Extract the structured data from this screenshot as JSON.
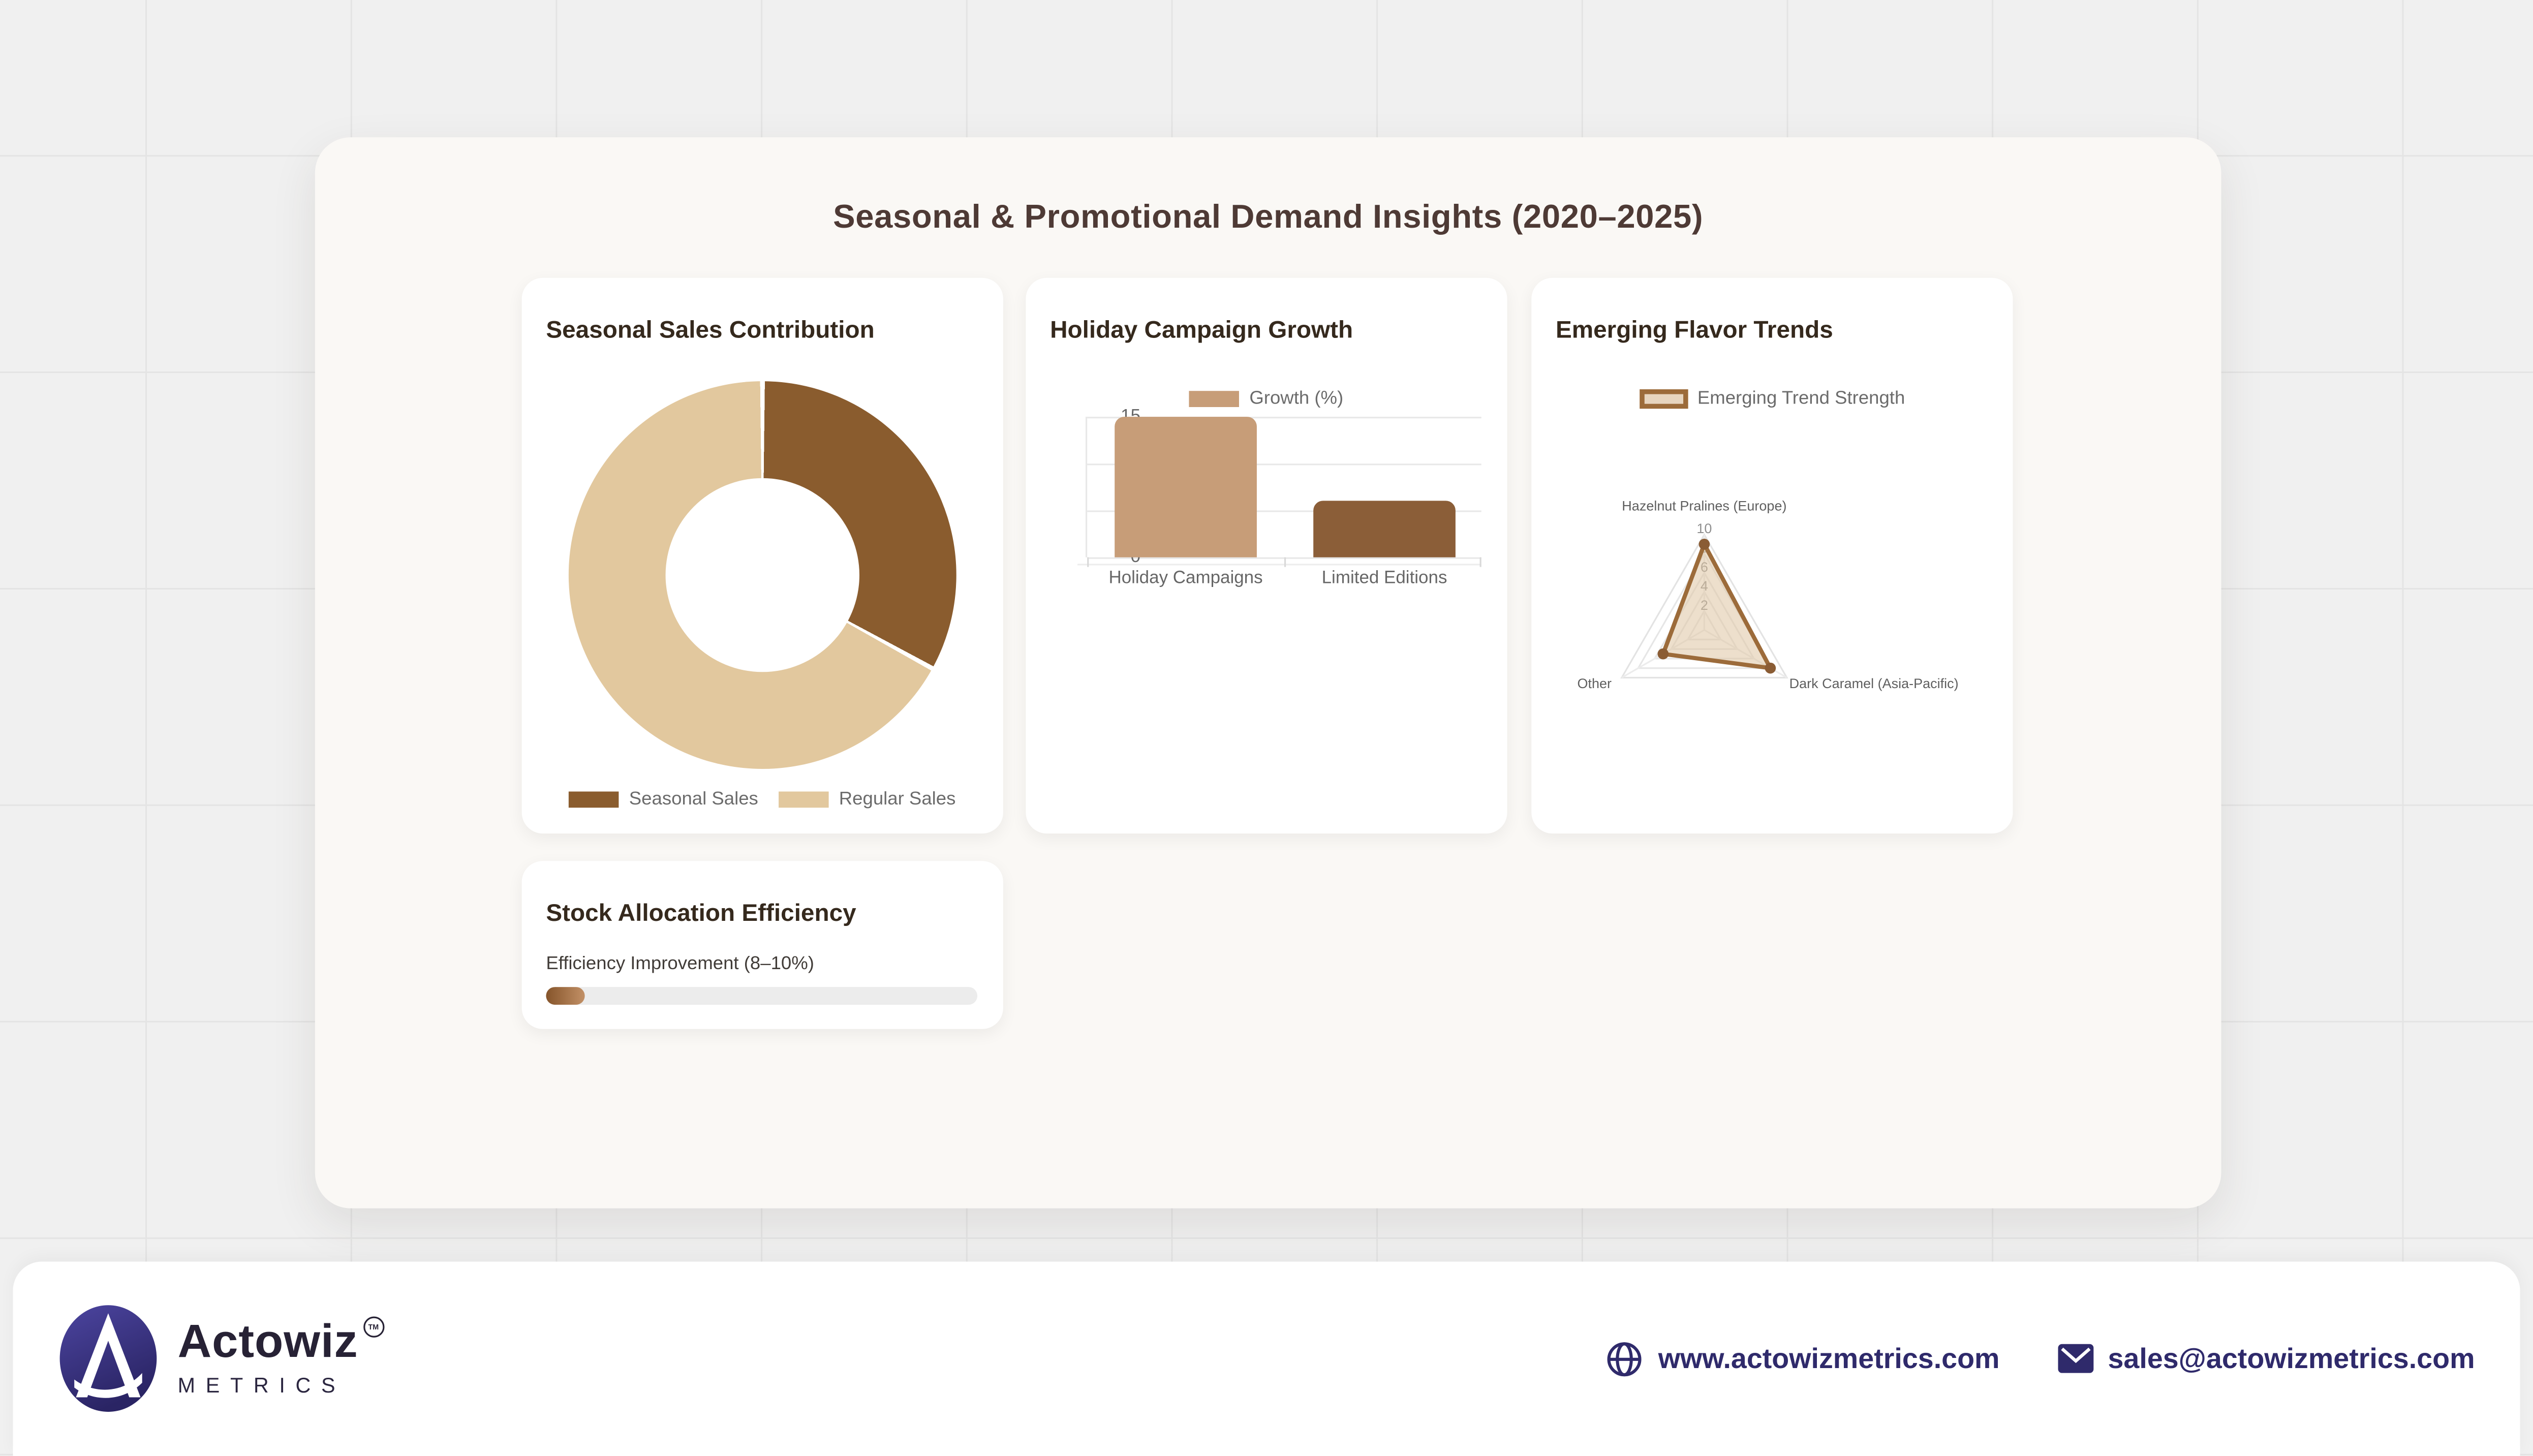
{
  "page": {
    "heading": "Seasonal & Promotional Demand Insights (2020–2025)"
  },
  "cards": {
    "donut": {
      "title": "Seasonal Sales Contribution"
    },
    "bar": {
      "title": "Holiday Campaign Growth"
    },
    "radar": {
      "title": "Emerging Flavor Trends"
    },
    "progress": {
      "title": "Stock Allocation Efficiency",
      "label": "Efficiency Improvement (8–10%)"
    }
  },
  "chart_data": [
    {
      "type": "pie",
      "variant": "doughnut",
      "title": "Seasonal Sales Contribution",
      "labels": [
        "Seasonal Sales",
        "Regular Sales"
      ],
      "values": [
        33,
        67
      ],
      "colors": [
        "#8a5c2e",
        "#e2c89e"
      ],
      "legend_position": "bottom",
      "start_angle_deg": 0,
      "cutout_percent": 50
    },
    {
      "type": "bar",
      "title": "Holiday Campaign Growth",
      "legend": "Growth (%)",
      "categories": [
        "Holiday Campaigns",
        "Limited Editions"
      ],
      "values": [
        15,
        6
      ],
      "colors": [
        "#c79d78",
        "#8b5e38"
      ],
      "ylim": [
        0,
        15
      ],
      "yticks": [
        15,
        10,
        5,
        0
      ],
      "grid": true,
      "legend_position": "top"
    },
    {
      "type": "radar",
      "title": "Emerging Flavor Trends",
      "legend": "Emerging Trend Strength",
      "axes": [
        "Hazelnut Pralines (Europe)",
        "Dark Caramel (Asia-Pacific)",
        "Other"
      ],
      "values": [
        9,
        8,
        5
      ],
      "ticks": [
        10,
        8,
        6,
        4,
        2
      ],
      "rmax": 10,
      "line_color": "#9c6b3a",
      "fill_color": "rgba(222,196,162,0.55)",
      "point_color": "#8a5c34",
      "legend_position": "top"
    },
    {
      "type": "bar",
      "variant": "progress",
      "title": "Stock Allocation Efficiency",
      "label": "Efficiency Improvement (8–10%)",
      "value_percent": 9,
      "range_shown": "8–10%",
      "track_color": "#ececec",
      "fill_colors": [
        "#85542a",
        "#c29066"
      ]
    }
  ],
  "footer": {
    "brand": {
      "name": "Actowiz",
      "tm": "TM",
      "subtitle": "METRICS"
    },
    "website": "www.actowizmetrics.com",
    "email": "sales@actowizmetrics.com"
  },
  "theme": {
    "page_bg": "#f0f0f0",
    "grid_line": "#e4e4e4",
    "panel_bg": "#faf8f5",
    "card_bg": "#ffffff",
    "heading_color": "#4e3a35",
    "card_title_color": "#35291d",
    "axis_text_color": "#666666",
    "legend_text_color": "#6b6b6b",
    "footer_accent": "#2f2a6b",
    "logo_gradient": [
      "#4c45a0",
      "#2a2464"
    ]
  }
}
